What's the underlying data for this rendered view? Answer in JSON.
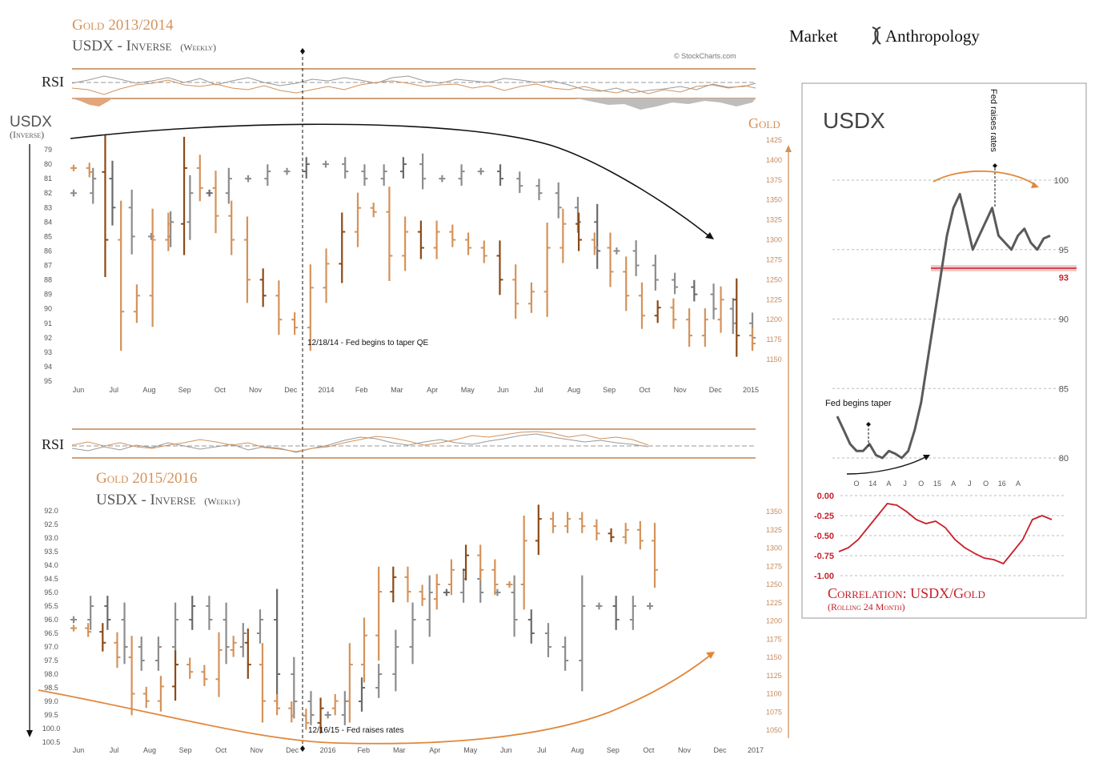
{
  "brand": {
    "left": "Market",
    "right": "Anthropology"
  },
  "credit": "© StockCharts.com",
  "colors": {
    "gold": "#d4925a",
    "gold_dark": "#8a4a17",
    "usdx": "#8c8c8c",
    "usdx_line": "#5a5a5a",
    "corr": "#c8202a",
    "frame": "#b46a2c"
  },
  "chart_data": [
    {
      "type": "ohlc",
      "panel": "top",
      "title_gold": "Gold 2013/2014",
      "title_usdx": "USDX - Inverse",
      "title_usdx_suffix": "(Weekly)",
      "rsi_label": "RSI",
      "left_axis_label": "USDX",
      "left_axis_sublabel": "(Inverse)",
      "right_axis_label": "Gold",
      "left_ticks": [
        "79",
        "80",
        "81",
        "82",
        "83",
        "84",
        "85",
        "86",
        "87",
        "88",
        "89",
        "90",
        "91",
        "92",
        "93",
        "94",
        "95"
      ],
      "left_inverted": true,
      "right_ticks": [
        "1425",
        "1400",
        "1375",
        "1350",
        "1325",
        "1300",
        "1275",
        "1250",
        "1225",
        "1200",
        "1175",
        "1150"
      ],
      "x_labels": [
        "Jun",
        "Jul",
        "Aug",
        "Sep",
        "Oct",
        "Nov",
        "Dec",
        "2014",
        "Feb",
        "Mar",
        "Apr",
        "May",
        "Jun",
        "Jul",
        "Aug",
        "Sep",
        "Oct",
        "Nov",
        "Dec",
        "2015"
      ],
      "annotation": "12/18/14 - Fed begins to taper QE",
      "series": [
        {
          "name": "Gold",
          "axis": "right",
          "close_approx": [
            1390,
            1385,
            1300,
            1210,
            1230,
            1300,
            1320,
            1390,
            1365,
            1330,
            1300,
            1250,
            1230,
            1200,
            1190,
            1240,
            1270,
            1310,
            1340,
            1335,
            1280,
            1310,
            1290,
            1310,
            1300,
            1290,
            1280,
            1250,
            1220,
            1235,
            1290,
            1320,
            1300,
            1290,
            1260,
            1230,
            1205,
            1215,
            1200,
            1180,
            1200,
            1225,
            1180,
            1170
          ]
        },
        {
          "name": "USDX (inverse)",
          "axis": "left",
          "close_approx": [
            82,
            81,
            83,
            85,
            85,
            84,
            82,
            82,
            81,
            81,
            80.5,
            80.5,
            80,
            80,
            80.5,
            81,
            80.5,
            80,
            81,
            81,
            80.5,
            80.5,
            81,
            81.5,
            82,
            83,
            84,
            86,
            86,
            87,
            88,
            88.5,
            89,
            90,
            91,
            92
          ]
        }
      ]
    },
    {
      "type": "ohlc",
      "panel": "bottom",
      "title_gold": "Gold 2015/2016",
      "title_usdx": "USDX - Inverse",
      "title_usdx_suffix": "(Weekly)",
      "rsi_label": "RSI",
      "left_ticks": [
        "92.0",
        "92.5",
        "93.0",
        "93.5",
        "94.0",
        "94.5",
        "95.0",
        "95.5",
        "96.0",
        "96.5",
        "97.0",
        "97.5",
        "98.0",
        "98.5",
        "99.0",
        "99.5",
        "100.0",
        "100.5"
      ],
      "left_inverted": true,
      "right_ticks": [
        "1350",
        "1325",
        "1300",
        "1275",
        "1250",
        "1225",
        "1200",
        "1175",
        "1150",
        "1125",
        "1100",
        "1075",
        "1050"
      ],
      "x_labels": [
        "Jun",
        "Jul",
        "Aug",
        "Sep",
        "Oct",
        "Nov",
        "Dec",
        "2016",
        "Feb",
        "Mar",
        "Apr",
        "May",
        "Jun",
        "Jul",
        "Aug",
        "Sep",
        "Oct",
        "Nov",
        "Dec",
        "2017"
      ],
      "annotation": "12/16/15 - Fed raises rates",
      "series": [
        {
          "name": "Gold",
          "axis": "right",
          "close_approx": [
            1190,
            1185,
            1170,
            1150,
            1100,
            1090,
            1110,
            1140,
            1130,
            1120,
            1160,
            1170,
            1140,
            1090,
            1080,
            1070,
            1060,
            1080,
            1090,
            1140,
            1180,
            1240,
            1260,
            1240,
            1230,
            1250,
            1270,
            1290,
            1270,
            1250,
            1250,
            1310,
            1340,
            1330,
            1340,
            1330,
            1320,
            1315,
            1325,
            1310,
            1270
          ]
        },
        {
          "name": "USDX (inverse)",
          "axis": "left",
          "close_approx": [
            96,
            95.5,
            96,
            97,
            97.5,
            97,
            96,
            95.5,
            96,
            97,
            96.5,
            96,
            98,
            99,
            99.5,
            99.5,
            99,
            98.5,
            98,
            97,
            96,
            95,
            95,
            94.5,
            95,
            95,
            96,
            96.5,
            97,
            97.5,
            95.5,
            95.5,
            96,
            95.5,
            95.5
          ]
        }
      ]
    },
    {
      "type": "line",
      "panel": "inset",
      "title": "USDX",
      "y_ticks": [
        "100",
        "95",
        "93",
        "90",
        "85",
        "80"
      ],
      "ylim": [
        79,
        101
      ],
      "x_labels": [
        "O",
        "14",
        "A",
        "J",
        "O",
        "15",
        "A",
        "J",
        "O",
        "16",
        "A"
      ],
      "annotations": [
        "Fed begins taper",
        "Fed raises rates"
      ],
      "support_level": 93,
      "series": [
        {
          "name": "USDX",
          "values": [
            83,
            82,
            81,
            80.5,
            80.5,
            81,
            80.2,
            80,
            80.5,
            80.3,
            80,
            80.5,
            82,
            84,
            87,
            90,
            93,
            96,
            98,
            99,
            97,
            95,
            96,
            97,
            98,
            96,
            95.5,
            95,
            96,
            96.5,
            95.5,
            95,
            95.8,
            96
          ]
        }
      ]
    },
    {
      "type": "line",
      "panel": "inset-correlation",
      "title": "Correlation: USDX/Gold",
      "subtitle": "(Rolling 24 Month)",
      "y_ticks": [
        "0.00",
        "-0.25",
        "-0.50",
        "-0.75",
        "-1.00"
      ],
      "ylim": [
        -1.0,
        0.0
      ],
      "series": [
        {
          "name": "Correlation",
          "values": [
            -0.7,
            -0.65,
            -0.55,
            -0.4,
            -0.25,
            -0.1,
            -0.12,
            -0.2,
            -0.3,
            -0.35,
            -0.32,
            -0.4,
            -0.55,
            -0.65,
            -0.72,
            -0.78,
            -0.8,
            -0.85,
            -0.7,
            -0.55,
            -0.3,
            -0.25,
            -0.3
          ]
        }
      ]
    }
  ]
}
